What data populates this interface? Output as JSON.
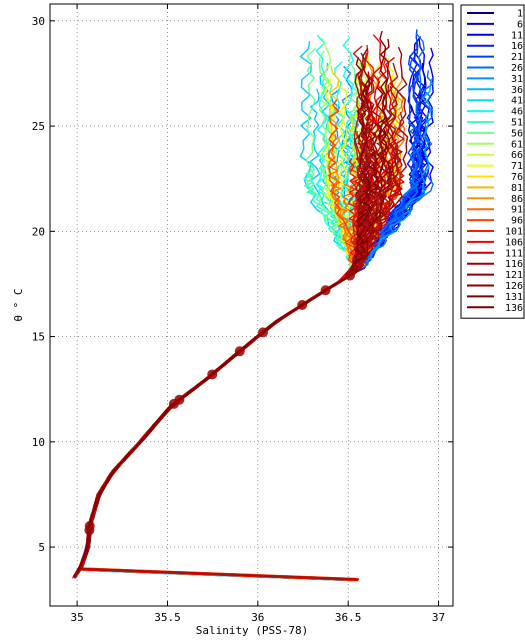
{
  "chart_data": {
    "type": "line",
    "title": "",
    "xlabel": "Salinity (PSS-78)",
    "ylabel": "θ ° C",
    "xlim": [
      34.85,
      37.08
    ],
    "ylim": [
      2.2,
      30.8
    ],
    "xticks": [
      35,
      35.5,
      36,
      36.5,
      37
    ],
    "xtick_labels": [
      "35",
      "35.5",
      "36",
      "36.5",
      "37"
    ],
    "yticks": [
      5,
      10,
      15,
      20,
      25,
      30
    ],
    "ytick_labels": [
      "5",
      "10",
      "15",
      "20",
      "25",
      "30"
    ],
    "grid": true,
    "grid_style": "dotted",
    "legend_position": "outside-right-top",
    "colormap": "jet",
    "series_names": [
      "1",
      "6",
      "11",
      "16",
      "21",
      "26",
      "31",
      "36",
      "41",
      "46",
      "51",
      "56",
      "61",
      "66",
      "71",
      "76",
      "81",
      "86",
      "91",
      "96",
      "101",
      "106",
      "111",
      "116",
      "121",
      "126",
      "131",
      "136"
    ],
    "series_colors": [
      "#00008f",
      "#0000bf",
      "#0000ef",
      "#0010ff",
      "#0040ff",
      "#0070ff",
      "#00a0ff",
      "#00cfff",
      "#10ffef",
      "#40ffbf",
      "#70ff8f",
      "#9fff60",
      "#cfff30",
      "#ffff00",
      "#ffcf00",
      "#ff9f00",
      "#ff7000",
      "#ff4000",
      "#ff1000",
      "#ef0000",
      "#bf0000",
      "#8f0000",
      "#800000",
      "#9a0a0a",
      "#b01010",
      "#c01818",
      "#a01010",
      "#8a0000"
    ],
    "legend_colors": [
      "#00008f",
      "#0000c8",
      "#0000f0",
      "#0018ff",
      "#0040ff",
      "#0068ff",
      "#0090ff",
      "#00b8ff",
      "#00e0ff",
      "#10fff0",
      "#40ffc0",
      "#70ff90",
      "#a0ff60",
      "#c8ff38",
      "#f0ff10",
      "#ffe000",
      "#ffb800",
      "#ff9000",
      "#ff6800",
      "#ff4000",
      "#ff1800",
      "#f00000",
      "#c80000",
      "#a00000",
      "#900000",
      "#880000",
      "#800000",
      "#7a0000"
    ],
    "common_curve": [
      {
        "x": 34.98,
        "y": 3.5
      },
      {
        "x": 35.02,
        "y": 4.0
      },
      {
        "x": 35.06,
        "y": 5.0
      },
      {
        "x": 35.07,
        "y": 6.0
      },
      {
        "x": 35.12,
        "y": 7.5
      },
      {
        "x": 35.2,
        "y": 8.6
      },
      {
        "x": 35.35,
        "y": 10.0
      },
      {
        "x": 35.52,
        "y": 11.7
      },
      {
        "x": 35.72,
        "y": 13.0
      },
      {
        "x": 35.9,
        "y": 14.3
      },
      {
        "x": 36.1,
        "y": 15.7
      },
      {
        "x": 36.3,
        "y": 16.8
      },
      {
        "x": 36.45,
        "y": 17.6
      },
      {
        "x": 36.55,
        "y": 18.1
      }
    ],
    "upper_region": {
      "s_min": 36.1,
      "s_max": 36.97,
      "t_min": 18.1,
      "t_max": 29.8
    }
  }
}
